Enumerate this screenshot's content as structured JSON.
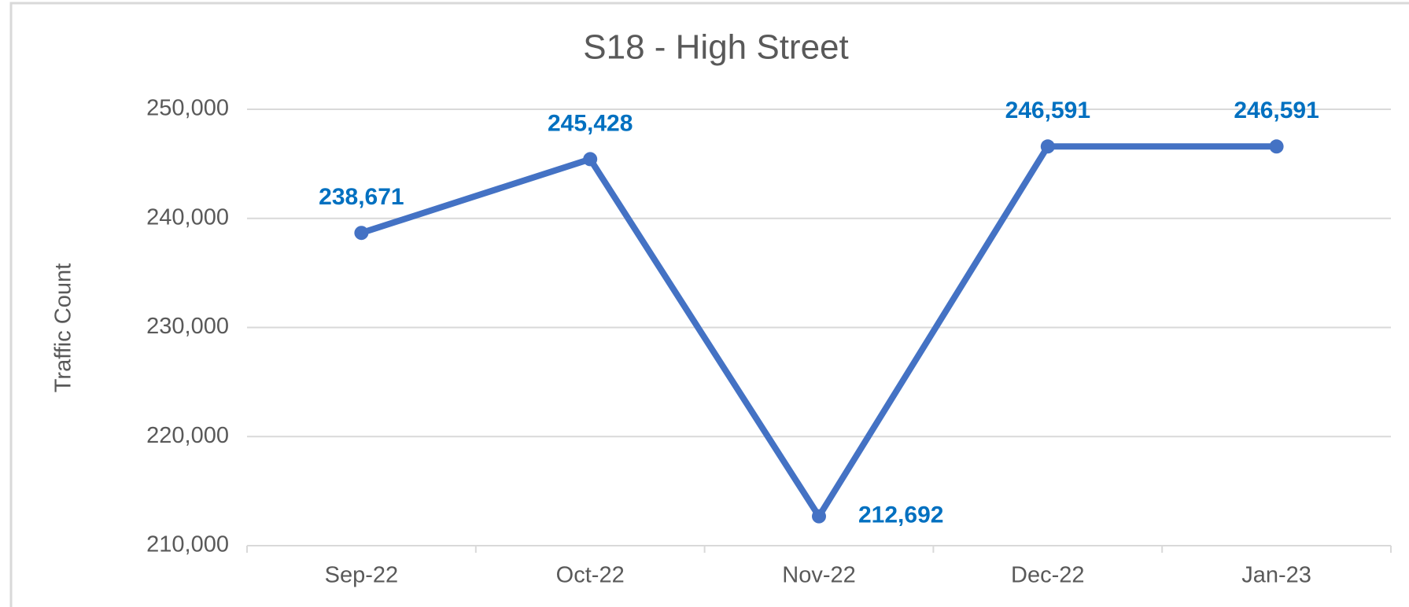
{
  "chart_data": {
    "type": "line",
    "title": "S18 - High Street",
    "y_label": "Traffic Count",
    "categories": [
      "Sep-22",
      "Oct-22",
      "Nov-22",
      "Dec-22",
      "Jan-23"
    ],
    "series": [
      {
        "name": "Traffic Count",
        "color": "#4472c4",
        "values": [
          238671,
          245428,
          212692,
          246591,
          246591
        ],
        "value_labels": [
          "238,671",
          "245,428",
          "212,692",
          "246,591",
          "246,591"
        ]
      }
    ],
    "ylim": [
      210000,
      250000
    ],
    "yticks": [
      {
        "value": 210000,
        "label": "210,000"
      },
      {
        "value": 220000,
        "label": "220,000"
      },
      {
        "value": 230000,
        "label": "230,000"
      },
      {
        "value": 240000,
        "label": "240,000"
      },
      {
        "value": 250000,
        "label": "250,000"
      }
    ],
    "grid": true
  }
}
